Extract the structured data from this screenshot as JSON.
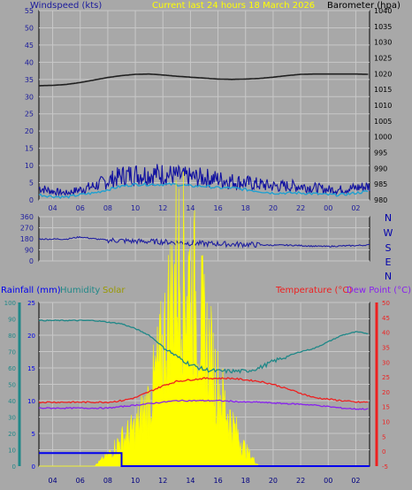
{
  "title": "Current last 24 hours 18 March 2026",
  "x_ticks": [
    "04",
    "06",
    "08",
    "10",
    "12",
    "14",
    "16",
    "18",
    "20",
    "22",
    "00",
    "02"
  ],
  "x_ticks_bottom": [
    "04",
    "06",
    "08",
    "10",
    "12",
    "14",
    "16",
    "18",
    "20",
    "22",
    "00",
    "02"
  ],
  "colors": {
    "background": "#a8a8a8",
    "grid": "#c8c8c8",
    "title": "#ffff00",
    "wind_axis": "#1a1a9c",
    "wind_gust": "#1010a0",
    "wind_avg": "#20a0d0",
    "barometer": "#202020",
    "direction": "#2020a0",
    "rain": "#0000ee",
    "humidity": "#208888",
    "solar": "#ffff00",
    "solar_label": "#999900",
    "temperature": "#ee2020",
    "dewpoint": "#8822ee"
  },
  "chart_data": [
    {
      "type": "line",
      "name": "wind-baro",
      "ylabel_left": "Windspeed (kts)",
      "ylabel_right": "Barometer (hpa)",
      "ylim_left": [
        0,
        55
      ],
      "yticks_left": [
        0,
        5,
        10,
        15,
        20,
        25,
        30,
        35,
        40,
        45,
        50,
        55
      ],
      "ylim_right": [
        980,
        1040
      ],
      "yticks_right": [
        980,
        985,
        990,
        995,
        1000,
        1005,
        1010,
        1015,
        1020,
        1025,
        1030,
        1035,
        1040
      ],
      "x_range_hours": [
        3,
        27
      ],
      "series": [
        {
          "key": "barometer",
          "axis": "right",
          "x": [
            3,
            4,
            5,
            6,
            7,
            8,
            9,
            10,
            11,
            12,
            13,
            14,
            15,
            16,
            17,
            18,
            19,
            20,
            21,
            22,
            23,
            24,
            25,
            26,
            27
          ],
          "values": [
            1016.2,
            1016.3,
            1016.6,
            1017.2,
            1018.0,
            1018.8,
            1019.4,
            1019.8,
            1019.9,
            1019.6,
            1019.2,
            1018.9,
            1018.6,
            1018.3,
            1018.2,
            1018.3,
            1018.5,
            1018.9,
            1019.4,
            1019.8,
            1019.9,
            1019.9,
            1019.9,
            1019.9,
            1019.8
          ]
        },
        {
          "key": "gust",
          "axis": "left",
          "x": [
            3,
            4,
            5,
            6,
            7,
            8,
            9,
            10,
            11,
            12,
            13,
            14,
            15,
            16,
            17,
            18,
            19,
            20,
            21,
            22,
            23,
            24,
            25,
            26,
            27
          ],
          "values": [
            3.5,
            2.5,
            2.0,
            3.0,
            4.0,
            5.5,
            7.0,
            7.5,
            7.5,
            7.5,
            7.0,
            6.5,
            6.5,
            6.0,
            5.5,
            5.0,
            4.5,
            4.0,
            4.0,
            4.0,
            3.5,
            3.0,
            3.0,
            3.5,
            4.0
          ]
        },
        {
          "key": "average",
          "axis": "left",
          "x": [
            3,
            4,
            5,
            6,
            7,
            8,
            9,
            10,
            11,
            12,
            13,
            14,
            15,
            16,
            17,
            18,
            19,
            20,
            21,
            22,
            23,
            24,
            25,
            26,
            27
          ],
          "values": [
            1.5,
            1.0,
            0.8,
            1.5,
            2.0,
            3.0,
            4.0,
            4.5,
            4.5,
            4.5,
            4.5,
            4.0,
            4.0,
            3.5,
            3.5,
            3.0,
            2.5,
            2.0,
            2.0,
            2.0,
            1.8,
            1.5,
            1.5,
            2.0,
            2.5
          ]
        }
      ]
    },
    {
      "type": "line",
      "name": "wind-direction",
      "ylim": [
        0,
        360
      ],
      "yticks": [
        0,
        90,
        180,
        270,
        360
      ],
      "compass": [
        "N",
        "W",
        "S",
        "E",
        "N"
      ],
      "series": [
        {
          "key": "direction",
          "x": [
            3,
            4,
            5,
            6,
            7,
            8,
            9,
            10,
            11,
            12,
            13,
            14,
            15,
            16,
            17,
            18,
            19,
            20,
            21,
            22,
            23,
            24,
            25,
            26,
            27
          ],
          "values": [
            178,
            178,
            178,
            195,
            180,
            170,
            165,
            160,
            158,
            155,
            150,
            145,
            140,
            140,
            135,
            135,
            130,
            128,
            128,
            125,
            120,
            118,
            122,
            125,
            130
          ]
        }
      ]
    },
    {
      "type": "line",
      "name": "rain-hum-temp",
      "ylabel_rain": "Rainfall (mm)",
      "ylabel_humidity": "Humidity",
      "ylabel_solar": "Solar",
      "ylabel_temp": "Temperature (°C)",
      "ylabel_dew": "Dew Point (°C)",
      "ylim_humidity": [
        0,
        100
      ],
      "yticks_humidity": [
        0,
        10,
        20,
        30,
        40,
        50,
        60,
        70,
        80,
        90,
        100
      ],
      "ylim_rain": [
        0,
        25
      ],
      "yticks_rain": [
        0,
        5,
        10,
        15,
        20,
        25
      ],
      "ylim_temp": [
        -5,
        50
      ],
      "yticks_temp": [
        -5,
        0,
        5,
        10,
        15,
        20,
        25,
        30,
        35,
        40,
        45,
        50
      ],
      "series": [
        {
          "key": "humidity",
          "x": [
            3,
            4,
            5,
            6,
            7,
            8,
            9,
            10,
            11,
            12,
            13,
            14,
            15,
            16,
            17,
            18,
            19,
            20,
            21,
            22,
            23,
            24,
            25,
            26,
            27
          ],
          "values": [
            89,
            89,
            89,
            89,
            89,
            88,
            87,
            84,
            80,
            73,
            67,
            62,
            59,
            58,
            58,
            58,
            60,
            64,
            67,
            70,
            72,
            76,
            80,
            82,
            81
          ]
        },
        {
          "key": "temperature",
          "x": [
            3,
            4,
            5,
            6,
            7,
            8,
            9,
            10,
            11,
            12,
            13,
            14,
            15,
            16,
            17,
            18,
            19,
            20,
            21,
            22,
            23,
            24,
            25,
            26,
            27
          ],
          "values": [
            16.5,
            16.5,
            16.5,
            16.5,
            16.5,
            16.5,
            17,
            18,
            20,
            22,
            23.5,
            24,
            24.5,
            24.5,
            24.5,
            24,
            23.5,
            22.5,
            21,
            19.5,
            18,
            17.5,
            17,
            16.5,
            16.5
          ]
        },
        {
          "key": "dewpoint",
          "x": [
            3,
            4,
            5,
            6,
            7,
            8,
            9,
            10,
            11,
            12,
            13,
            14,
            15,
            16,
            17,
            18,
            19,
            20,
            21,
            22,
            23,
            24,
            25,
            26,
            27
          ],
          "values": [
            14.5,
            14.5,
            14.5,
            14.5,
            14.5,
            14.5,
            15,
            15.5,
            16,
            16.5,
            17,
            17,
            17,
            17,
            16.8,
            16.5,
            16.5,
            16.2,
            16,
            15.8,
            15.5,
            15,
            14.5,
            14.2,
            14.2
          ]
        },
        {
          "key": "rain",
          "x": [
            3,
            9,
            9,
            27
          ],
          "values": [
            2,
            2,
            0,
            0
          ]
        },
        {
          "key": "solar",
          "x": [
            3,
            7,
            8,
            9,
            10,
            11,
            12,
            13,
            14,
            15,
            16,
            17,
            18,
            19,
            20,
            21,
            27
          ],
          "values": [
            0,
            0,
            2,
            5,
            7,
            12,
            22,
            38,
            35,
            25,
            15,
            8,
            3,
            0,
            0,
            0,
            0
          ]
        }
      ]
    }
  ]
}
